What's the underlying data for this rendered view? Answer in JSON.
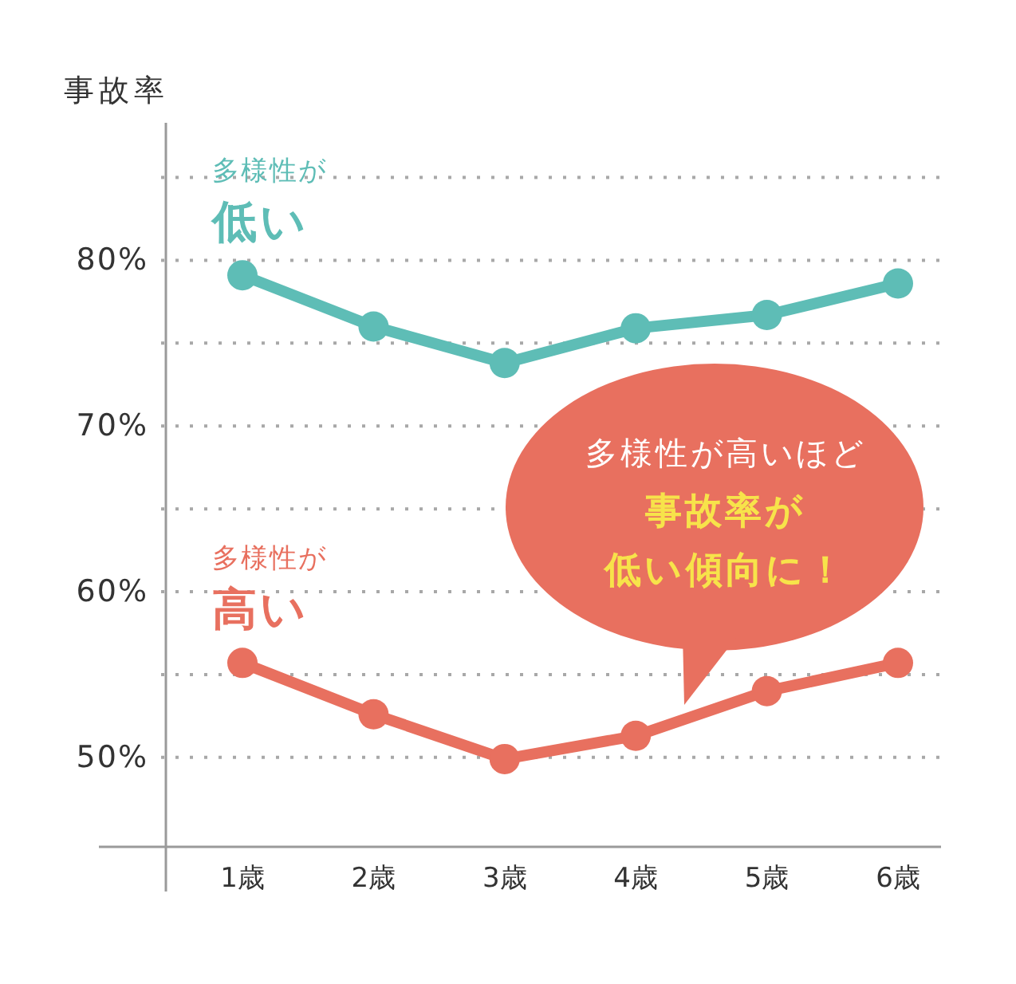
{
  "chart_data": {
    "type": "line",
    "ylabel": "事故率",
    "categories": [
      "1歳",
      "2歳",
      "3歳",
      "4歳",
      "5歳",
      "6歳"
    ],
    "series": [
      {
        "name": "多様性が低い",
        "color": "#5ebdb6",
        "values": [
          79.1,
          76.0,
          73.8,
          75.9,
          76.7,
          78.6
        ]
      },
      {
        "name": "多様性が高い",
        "color": "#e8705f",
        "values": [
          55.7,
          52.6,
          49.9,
          51.3,
          54.0,
          55.7
        ]
      }
    ],
    "ylim": [
      44.6,
      88.3
    ],
    "yticks": [
      {
        "value": 50,
        "label": "50%"
      },
      {
        "value": 55,
        "label": null
      },
      {
        "value": 60,
        "label": "60%"
      },
      {
        "value": 65,
        "label": null
      },
      {
        "value": 70,
        "label": "70%"
      },
      {
        "value": 75,
        "label": null
      },
      {
        "value": 80,
        "label": "80%"
      },
      {
        "value": 85,
        "label": null
      }
    ],
    "grid": "y",
    "marker": "circle",
    "line_style": "solid",
    "annotations": [
      "多様性が高いほど",
      "事故率が低い傾向に！"
    ]
  }
}
